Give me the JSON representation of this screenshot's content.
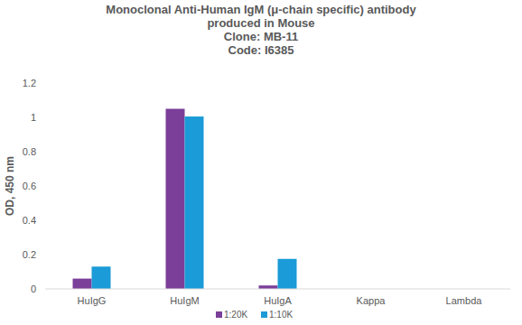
{
  "chart_data": {
    "type": "bar",
    "title": [
      "Monoclonal Anti-Human IgM (μ-chain specific) antibody",
      "produced in Mouse",
      "Clone: MB-11",
      "Code: I6385"
    ],
    "y_label": "OD, 450 nm",
    "categories": [
      "HuIgG",
      "HuIgM",
      "HuIgA",
      "Kappa",
      "Lambda"
    ],
    "series": [
      {
        "name": "1:20K",
        "color": "#7b3f99",
        "values": [
          0.06,
          1.05,
          0.02,
          0,
          0
        ]
      },
      {
        "name": "1:10K",
        "color": "#1b9bd7",
        "values": [
          0.13,
          1.005,
          0.175,
          0,
          0
        ]
      }
    ],
    "ylim": [
      0,
      1.2
    ],
    "yticks": [
      0,
      0.2,
      0.4,
      0.6,
      0.8,
      1,
      1.2
    ],
    "grid": false,
    "legend": "bottom"
  }
}
